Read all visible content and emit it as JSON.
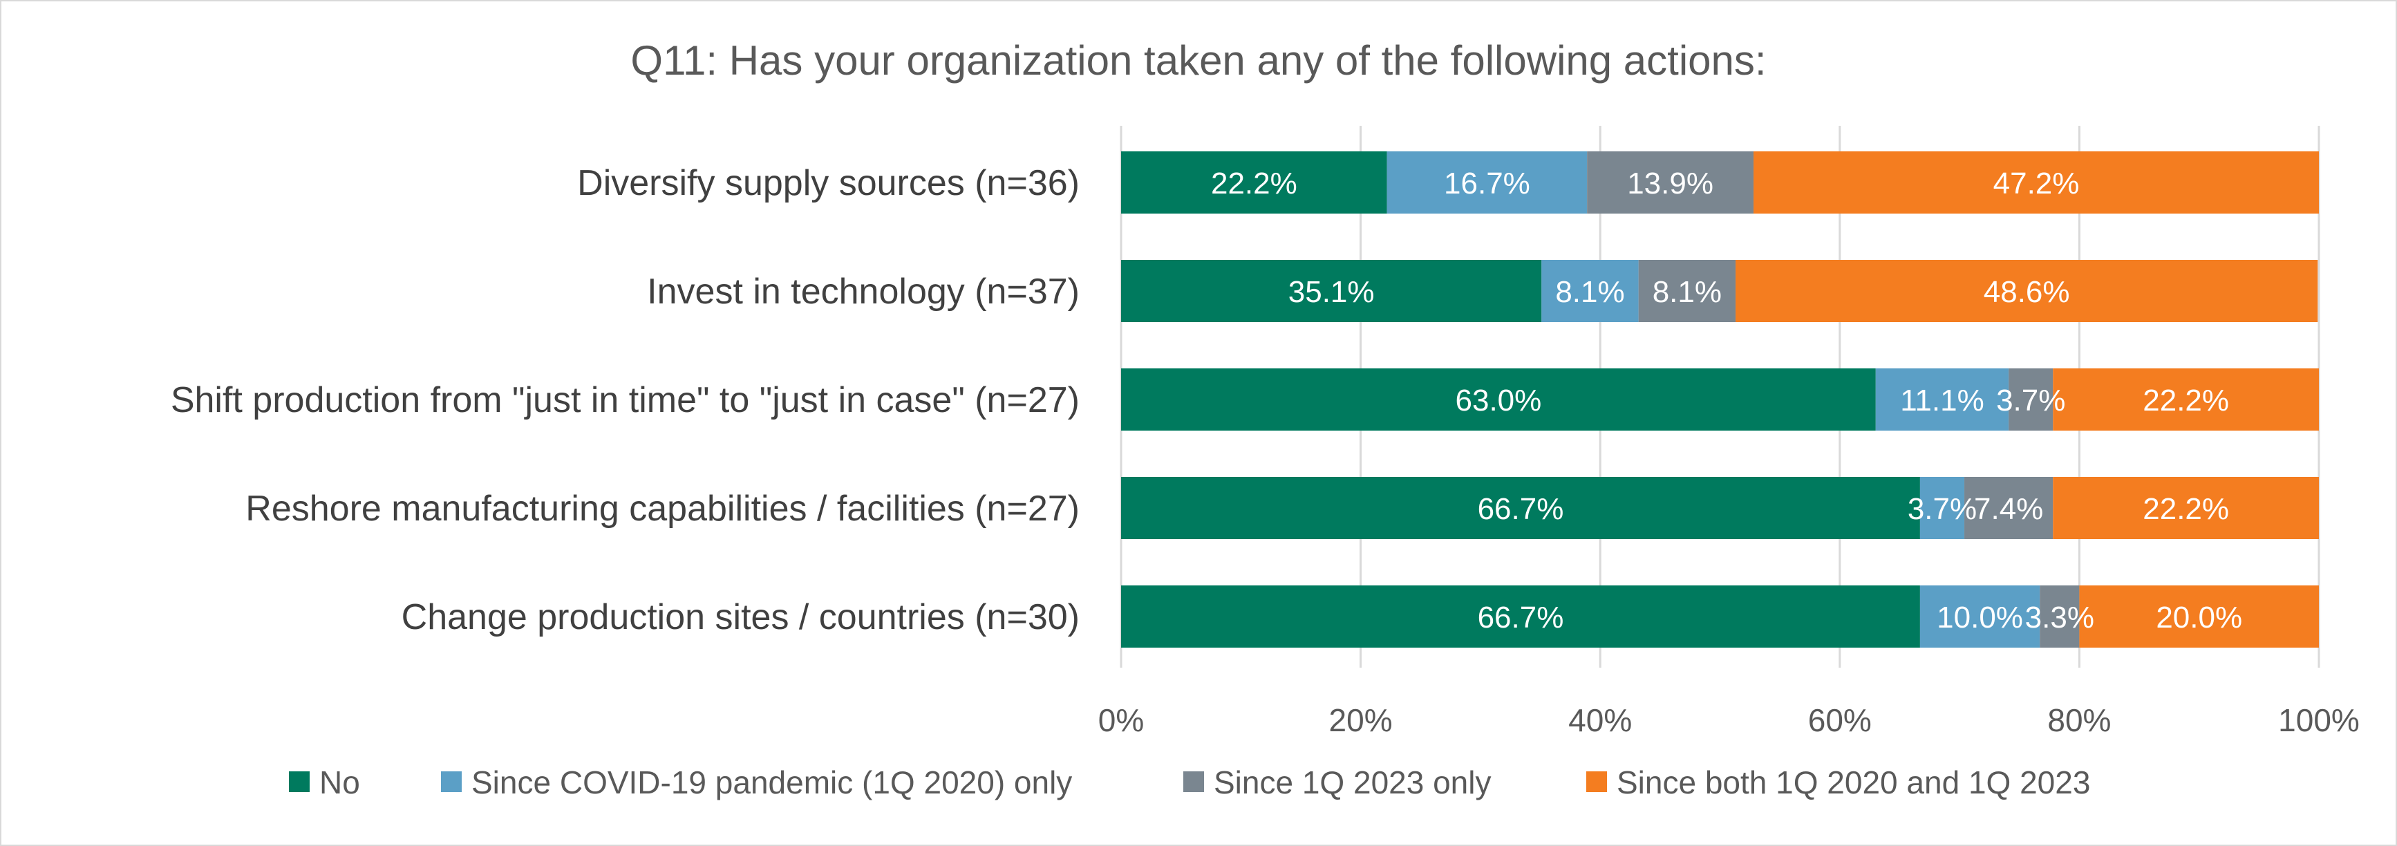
{
  "chart_data": {
    "type": "bar",
    "orientation": "horizontal",
    "stacked": "percent",
    "title": "Q11: Has your organization taken any of the following actions:",
    "categories": [
      "Diversify supply sources (n=36)",
      "Invest in technology (n=37)",
      "Shift production from \"just in time\" to \"just in case\" (n=27)",
      "Reshore manufacturing capabilities / facilities (n=27)",
      "Change production sites / countries (n=30)"
    ],
    "series": [
      {
        "name": "No",
        "color": "#007a5e",
        "values": [
          22.2,
          35.1,
          63.0,
          66.7,
          66.7
        ],
        "labels": [
          "22.2%",
          "35.1%",
          "63.0%",
          "66.7%",
          "66.7%"
        ]
      },
      {
        "name": "Since COVID-19 pandemic (1Q 2020) only",
        "color": "#5b9fc6",
        "values": [
          16.7,
          8.1,
          11.1,
          3.7,
          10.0
        ],
        "labels": [
          "16.7%",
          "8.1%",
          "11.1%",
          "3.7%",
          "10.0%"
        ]
      },
      {
        "name": "Since 1Q 2023 only",
        "color": "#7a8690",
        "values": [
          13.9,
          8.1,
          3.7,
          7.4,
          3.3
        ],
        "labels": [
          "13.9%",
          "8.1%",
          "3.7%",
          "7.4%",
          "3.3%"
        ]
      },
      {
        "name": "Since both 1Q 2020 and 1Q 2023",
        "color": "#f47d20",
        "values": [
          47.2,
          48.6,
          22.2,
          22.2,
          20.0
        ],
        "labels": [
          "47.2%",
          "48.6%",
          "22.2%",
          "22.2%",
          "20.0%"
        ]
      }
    ],
    "xlim": [
      0,
      100
    ],
    "xticks": [
      "0%",
      "20%",
      "40%",
      "60%",
      "80%",
      "100%"
    ],
    "xlabel": "",
    "ylabel": "",
    "grid": true,
    "legend": "bottom"
  }
}
